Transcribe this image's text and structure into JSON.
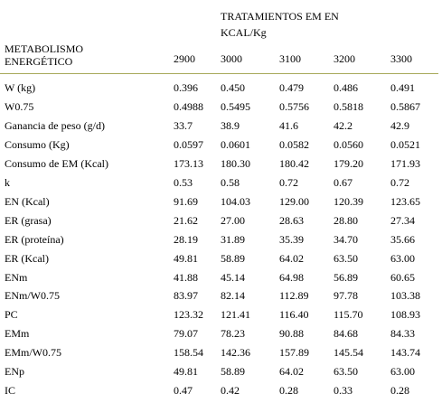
{
  "table": {
    "group_header": "TRATAMIENTOS EM EN KCAL/Kg",
    "row_header": "METABOLISMO ENERGÉTICO",
    "columns": [
      "2900",
      "3000",
      "3100",
      "3200",
      "3300"
    ],
    "rows": [
      [
        "W (kg)",
        "0.396",
        "0.450",
        "0.479",
        "0.486",
        "0.491"
      ],
      [
        "W0.75",
        "0.4988",
        "0.5495",
        "0.5756",
        "0.5818",
        "0.5867"
      ],
      [
        "Ganancia de peso (g/d)",
        "33.7",
        "38.9",
        "41.6",
        "42.2",
        "42.9"
      ],
      [
        "Consumo (Kg)",
        "0.0597",
        "0.0601",
        "0.0582",
        "0.0560",
        "0.0521"
      ],
      [
        "Consumo de EM (Kcal)",
        "173.13",
        "180.30",
        "180.42",
        "179.20",
        "171.93"
      ],
      [
        "k",
        "0.53",
        "0.58",
        "0.72",
        "0.67",
        "0.72"
      ],
      [
        "EN (Kcal)",
        "91.69",
        "104.03",
        "129.00",
        "120.39",
        "123.65"
      ],
      [
        "ER (grasa)",
        "21.62",
        "27.00",
        "28.63",
        "28.80",
        "27.34"
      ],
      [
        "ER (proteína)",
        "28.19",
        "31.89",
        "35.39",
        "34.70",
        "35.66"
      ],
      [
        "ER (Kcal)",
        "49.81",
        "58.89",
        "64.02",
        "63.50",
        "63.00"
      ],
      [
        "ENm",
        "41.88",
        "45.14",
        "64.98",
        "56.89",
        "60.65"
      ],
      [
        "ENm/W0.75",
        "83.97",
        "82.14",
        "112.89",
        "97.78",
        "103.38"
      ],
      [
        "PC",
        "123.32",
        "121.41",
        "116.40",
        "115.70",
        "108.93"
      ],
      [
        "EMm",
        "79.07",
        "78.23",
        "90.88",
        "84.68",
        "84.33"
      ],
      [
        "EMm/W0.75",
        "158.54",
        "142.36",
        "157.89",
        "145.54",
        "143.74"
      ],
      [
        "ENp",
        "49.81",
        "58.89",
        "64.02",
        "63.50",
        "63.00"
      ],
      [
        "IC",
        "0.47",
        "0.42",
        "0.28",
        "0.33",
        "0.28"
      ]
    ]
  }
}
